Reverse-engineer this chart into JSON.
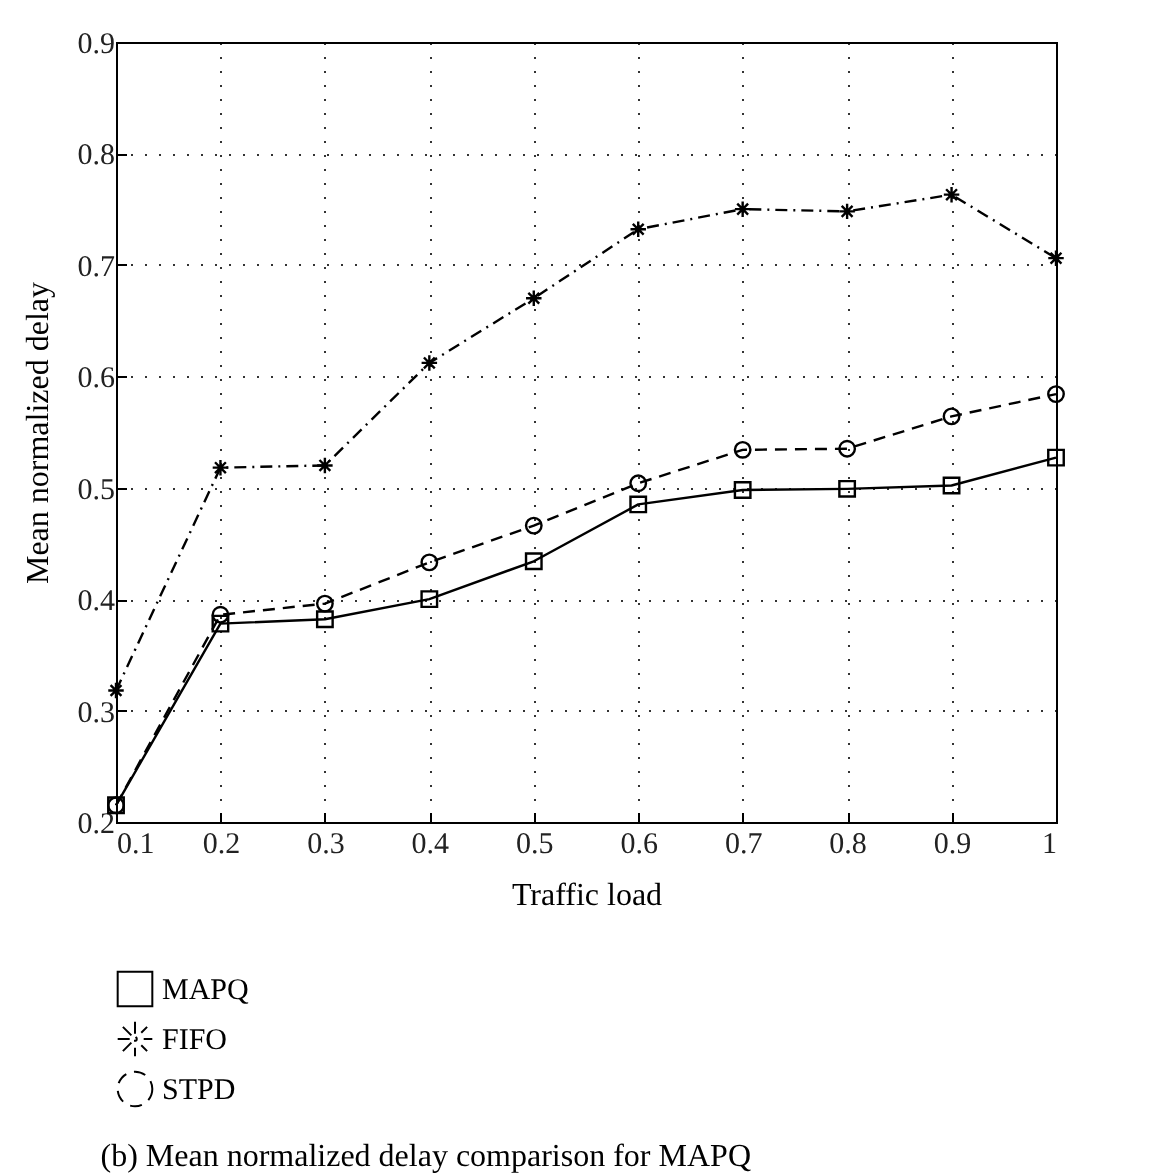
{
  "chart_data": {
    "type": "line",
    "xlabel": "Traffic load",
    "ylabel": "Mean normalized delay",
    "annotations": [
      "(b) Mean normalized delay comparison for MAPQ"
    ],
    "x": [
      0.1,
      0.2,
      0.3,
      0.4,
      0.5,
      0.6,
      0.7,
      0.8,
      0.9,
      1
    ],
    "series": [
      {
        "name": "MAPQ",
        "color": "#000000",
        "marker": "square",
        "line_style": "solid",
        "values": [
          0.215,
          0.378,
          0.382,
          0.4,
          0.434,
          0.485,
          0.498,
          0.499,
          0.502,
          0.527
        ]
      },
      {
        "name": "FIFO",
        "color": "#000000",
        "marker": "cross",
        "line_style": "dashdot",
        "values": [
          0.318,
          0.518,
          0.52,
          0.612,
          0.67,
          0.732,
          0.75,
          0.748,
          0.763,
          0.706
        ]
      },
      {
        "name": "STPD",
        "color": "#000000",
        "marker": "circle",
        "line_style": "dashed",
        "values": [
          0.215,
          0.386,
          0.396,
          0.433,
          0.466,
          0.504,
          0.534,
          0.535,
          0.564,
          0.584
        ]
      }
    ],
    "xlim": [
      0.1,
      1
    ],
    "ylim": [
      0.2,
      0.9
    ],
    "xticks": [
      0.1,
      0.2,
      0.3,
      0.4,
      0.5,
      0.6,
      0.7,
      0.8,
      0.9,
      1
    ],
    "yticks": [
      0.2,
      0.3,
      0.4,
      0.5,
      0.6,
      0.7,
      0.8,
      0.9
    ],
    "grid": true,
    "legend": "bottom left"
  }
}
